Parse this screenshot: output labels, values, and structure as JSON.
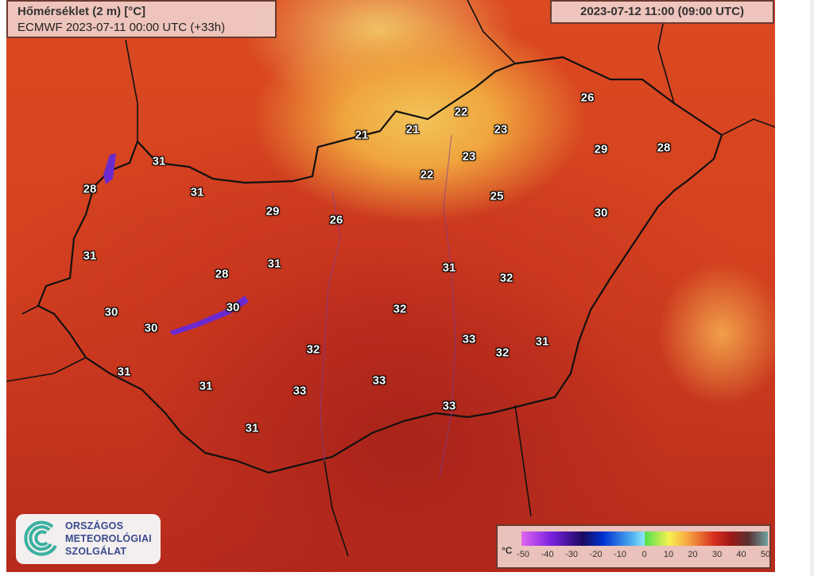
{
  "header": {
    "title": "Hőmérséklet (2 m) [°C]",
    "model_run": "ECMWF 2023-07-11 00:00 UTC (+33h)",
    "valid_time": "2023-07-12 11:00 (09:00 UTC)"
  },
  "legend": {
    "unit": "°C",
    "ticks": [
      "-50",
      "-40",
      "-30",
      "-20",
      "-10",
      "0",
      "10",
      "20",
      "30",
      "40",
      "50"
    ],
    "range": [
      -50,
      50
    ]
  },
  "logo": {
    "line1": "ORSZÁGOS",
    "line2": "METEOROLÓGIAI",
    "line3": "SZOLGÁLAT"
  },
  "temperatures": [
    "31",
    "28",
    "31",
    "29",
    "26",
    "21",
    "21",
    "22",
    "23",
    "23",
    "22",
    "25",
    "26",
    "29",
    "28",
    "30",
    "31",
    "31",
    "28",
    "31",
    "32",
    "30",
    "30",
    "30",
    "32",
    "32",
    "33",
    "32",
    "31",
    "31",
    "31",
    "33",
    "33",
    "33",
    "31"
  ],
  "colors": {
    "hot": "#c3301f",
    "mild": "#f2c45a",
    "border": "#111111",
    "water": "#6a2ad0"
  }
}
